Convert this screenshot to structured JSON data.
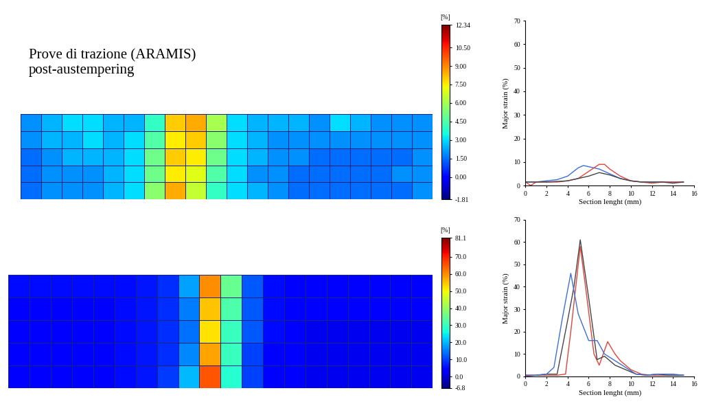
{
  "header": {
    "title": "Prove di trazione (ARAMIS)\npost-austempering"
  },
  "chart_data": [
    {
      "type": "heatmap",
      "cells": [
        [
          2,
          2.5,
          3,
          3,
          2.5,
          2.5,
          4,
          8,
          8.5,
          6,
          3,
          2.5,
          2.5,
          2.5,
          2,
          3,
          2.5,
          2,
          2,
          2
        ],
        [
          2,
          2.5,
          2.5,
          3,
          2.5,
          3,
          4.5,
          7.5,
          8,
          5.5,
          3,
          2.5,
          2,
          2,
          2,
          2,
          2,
          2,
          2,
          2
        ],
        [
          1.5,
          2,
          2.5,
          2.5,
          2.5,
          3,
          5,
          8,
          7.5,
          5,
          3,
          2.5,
          2,
          2,
          1.5,
          1.5,
          1.5,
          1.5,
          1.5,
          2
        ],
        [
          1.5,
          2,
          2,
          2,
          2.5,
          3,
          5,
          7.5,
          7,
          4.5,
          3,
          2,
          2,
          1.5,
          1.5,
          1.5,
          1.5,
          1.5,
          2,
          2
        ],
        [
          1.5,
          2,
          2,
          2,
          2.5,
          3,
          5.5,
          8.5,
          6.5,
          4,
          3,
          2.5,
          2,
          1.5,
          1.5,
          1.5,
          1.5,
          1.5,
          1.5,
          2
        ]
      ],
      "colorbar": {
        "range": [
          -1.81,
          12.34
        ],
        "ticks": [
          {
            "value": 12.34,
            "label": "12.34"
          },
          {
            "value": 10.5,
            "label": "10.50"
          },
          {
            "value": 9.0,
            "label": "9.00"
          },
          {
            "value": 7.5,
            "label": "7.50"
          },
          {
            "value": 6.0,
            "label": "6.00"
          },
          {
            "value": 4.5,
            "label": "4.50"
          },
          {
            "value": 3.0,
            "label": "3.00"
          },
          {
            "value": 1.5,
            "label": "1.50"
          },
          {
            "value": 0.0,
            "label": "0.00"
          },
          {
            "value": -1.81,
            "label": "-1.81"
          }
        ],
        "label": "[%]"
      }
    },
    {
      "type": "line",
      "xlabel": "Section lenght (mm)",
      "ylabel": "Major strain (%)",
      "xlim": [
        0,
        16
      ],
      "ylim": [
        0,
        70
      ],
      "xticks": [
        0,
        2,
        4,
        6,
        8,
        10,
        12,
        14,
        16
      ],
      "yticks": [
        0,
        10,
        20,
        30,
        40,
        50,
        60,
        70
      ],
      "series": [
        {
          "color": "#3b6fd4",
          "x": [
            0,
            1,
            2,
            3,
            4,
            5,
            5.5,
            6,
            7,
            8,
            9,
            10,
            11,
            12,
            13,
            14,
            15
          ],
          "values": [
            1.5,
            1.5,
            2,
            2.5,
            4,
            7.5,
            8.5,
            8,
            7,
            5,
            3,
            2,
            1.5,
            1.5,
            1.5,
            1.5,
            1.5
          ]
        },
        {
          "color": "#e0433a",
          "x": [
            0,
            0.5,
            1,
            2,
            3,
            4,
            5,
            6,
            7,
            7.5,
            8,
            9,
            10,
            11,
            12,
            13,
            14,
            15
          ],
          "values": [
            1.5,
            0,
            1.5,
            1.5,
            1.5,
            2,
            3,
            6,
            9,
            9,
            7,
            4,
            2,
            1.5,
            1,
            1.5,
            1.5,
            1.5
          ]
        },
        {
          "color": "#444444",
          "x": [
            0,
            2,
            4,
            5,
            6,
            7,
            8,
            9,
            10,
            11,
            12,
            13,
            14,
            15
          ],
          "values": [
            1.5,
            1.5,
            2,
            3,
            4,
            5.5,
            4.5,
            3,
            2,
            1.5,
            1.5,
            1.5,
            1,
            1.5
          ]
        }
      ]
    },
    {
      "type": "heatmap",
      "cells": [
        [
          5,
          5,
          5,
          5,
          5,
          5,
          6,
          8,
          18,
          60,
          35,
          12,
          5,
          3,
          3,
          3,
          3,
          3,
          3,
          3
        ],
        [
          4,
          4,
          4,
          4,
          4,
          5,
          6,
          8,
          15,
          55,
          32,
          12,
          5,
          3,
          3,
          3,
          3,
          3,
          3,
          3
        ],
        [
          4,
          4,
          4,
          4,
          4,
          5,
          6,
          8,
          14,
          52,
          30,
          12,
          5,
          3,
          2,
          2,
          2,
          2,
          2,
          2
        ],
        [
          4,
          4,
          4,
          4,
          4,
          5,
          6,
          8,
          16,
          58,
          30,
          10,
          4,
          3,
          2,
          2,
          2,
          2,
          2,
          2
        ],
        [
          4,
          4,
          4,
          4,
          4,
          5,
          6,
          9,
          20,
          65,
          28,
          10,
          4,
          3,
          2,
          2,
          2,
          2,
          2,
          2
        ]
      ],
      "colorbar": {
        "range": [
          -6.8,
          81.1
        ],
        "ticks": [
          {
            "value": 81.1,
            "label": "81.1"
          },
          {
            "value": 70.0,
            "label": "70.0"
          },
          {
            "value": 60.0,
            "label": "60.0"
          },
          {
            "value": 50.0,
            "label": "50.0"
          },
          {
            "value": 40.0,
            "label": "40.0"
          },
          {
            "value": 30.0,
            "label": "30.0"
          },
          {
            "value": 20.0,
            "label": "20.0"
          },
          {
            "value": 10.0,
            "label": "10.0"
          },
          {
            "value": 0.0,
            "label": "0.0"
          },
          {
            "value": -6.8,
            "label": "-6.8"
          }
        ],
        "label": "[%]"
      }
    },
    {
      "type": "line",
      "xlabel": "Section lenght (mm)",
      "ylabel": "Major strain (%)",
      "xlim": [
        0,
        16
      ],
      "ylim": [
        0,
        70
      ],
      "xticks": [
        0,
        2,
        4,
        6,
        8,
        10,
        12,
        14,
        16
      ],
      "yticks": [
        0,
        10,
        20,
        30,
        40,
        50,
        60,
        70
      ],
      "series": [
        {
          "color": "#e0433a",
          "x": [
            0,
            1,
            2,
            3,
            3.8,
            4.3,
            5.2,
            5.7,
            6.5,
            7,
            7.8,
            8.5,
            9,
            10,
            11,
            12,
            13,
            14,
            15
          ],
          "values": [
            0,
            0.5,
            0.5,
            0.5,
            1,
            20,
            58,
            40,
            10,
            5,
            15.5,
            10,
            7,
            3,
            1,
            0.5,
            0.5,
            0.5,
            0.5
          ]
        },
        {
          "color": "#444444",
          "x": [
            0,
            1,
            2,
            3,
            4,
            4.6,
            5.2,
            6,
            6.8,
            7.5,
            8.5,
            9.5,
            10.5,
            11.5,
            12.5,
            13.5,
            15
          ],
          "values": [
            0.5,
            0.5,
            1,
            1,
            25,
            40,
            61,
            35,
            7.5,
            9,
            5,
            3,
            1,
            0.5,
            1,
            0.5,
            0.5
          ]
        },
        {
          "color": "#3b6fd4",
          "x": [
            0,
            1,
            2,
            2.7,
            3.5,
            4.3,
            5,
            6,
            6.8,
            7.5,
            8.5,
            9.5,
            10.5,
            11.5,
            12.5,
            14,
            15
          ],
          "values": [
            0.5,
            0.5,
            1,
            4,
            26,
            46,
            28,
            16,
            16,
            10,
            7,
            4,
            1,
            0.5,
            1,
            1,
            0.5
          ]
        }
      ]
    }
  ]
}
